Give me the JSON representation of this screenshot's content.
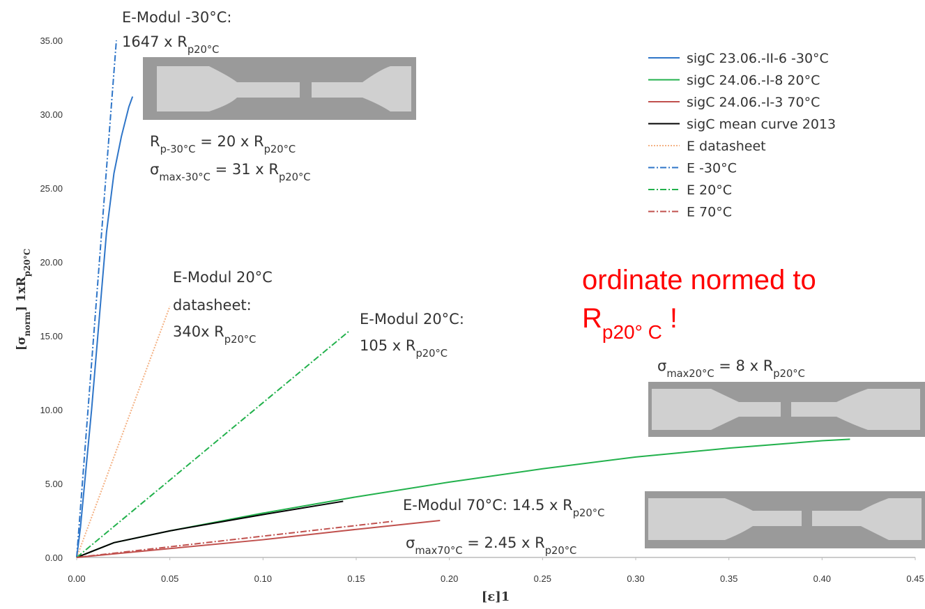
{
  "chart_data": {
    "type": "line",
    "xlabel": [
      {
        "text": "[ε]1"
      }
    ],
    "ylabel": [
      {
        "text": "[σ"
      },
      {
        "sub": "norm"
      },
      {
        "text": "] 1xR"
      },
      {
        "sub": "p20°C"
      }
    ],
    "xlim": [
      0,
      0.45
    ],
    "xticks": [
      {
        "value": 0,
        "label": "0.00"
      },
      {
        "value": 0.05,
        "label": "0.05"
      },
      {
        "value": 0.1,
        "label": "0.10"
      },
      {
        "value": 0.15,
        "label": "0.15"
      },
      {
        "value": 0.2,
        "label": "0.20"
      },
      {
        "value": 0.25,
        "label": "0.25"
      },
      {
        "value": 0.3,
        "label": "0.30"
      },
      {
        "value": 0.35,
        "label": "0.35"
      },
      {
        "value": 0.4,
        "label": "0.40"
      },
      {
        "value": 0.45,
        "label": "0.45"
      }
    ],
    "ylim": [
      0,
      35
    ],
    "yticks": [
      {
        "value": 0,
        "label": "0.00"
      },
      {
        "value": 5,
        "label": "5.00"
      },
      {
        "value": 10,
        "label": "10.00"
      },
      {
        "value": 15,
        "label": "15.00"
      },
      {
        "value": 20,
        "label": "20.00"
      },
      {
        "value": 25,
        "label": "25.00"
      },
      {
        "value": 30,
        "label": "30.00"
      },
      {
        "value": 35,
        "label": "35.00"
      }
    ],
    "grid": false,
    "legend": "upper right",
    "series": [
      {
        "name": "sigC 23.06.-II-6 -30°C",
        "color": "#2e75c8",
        "dash": "solid",
        "x": [
          0,
          0.002,
          0.005,
          0.008,
          0.012,
          0.016,
          0.02,
          0.024,
          0.028,
          0.03
        ],
        "values": [
          0,
          2,
          6,
          10,
          16,
          22,
          26,
          28.5,
          30.5,
          31.2
        ]
      },
      {
        "name": "sigC 24.06.-I-8 20°C",
        "color": "#22b14c",
        "dash": "solid",
        "x": [
          0,
          0.02,
          0.05,
          0.1,
          0.15,
          0.2,
          0.25,
          0.3,
          0.35,
          0.4,
          0.415
        ],
        "values": [
          0,
          1,
          1.8,
          3,
          4.1,
          5.1,
          6,
          6.8,
          7.4,
          7.9,
          8
        ]
      },
      {
        "name": "sigC 24.06.-I-3 70°C",
        "color": "#c0504d",
        "dash": "solid",
        "x": [
          0,
          0.05,
          0.1,
          0.15,
          0.195
        ],
        "values": [
          0,
          0.6,
          1.2,
          1.9,
          2.5
        ]
      },
      {
        "name": "sigC mean curve 2013",
        "color": "#000000",
        "dash": "solid",
        "x": [
          0,
          0.02,
          0.05,
          0.1,
          0.143
        ],
        "values": [
          0,
          1,
          1.8,
          2.9,
          3.8
        ]
      },
      {
        "name": "E datasheet",
        "color": "#f4b183",
        "dash": "dotted",
        "x": [
          0,
          0.05
        ],
        "values": [
          0,
          17
        ]
      },
      {
        "name": "E -30°C",
        "color": "#2e75c8",
        "dash": "dashdot",
        "x": [
          0,
          0.0213
        ],
        "values": [
          0,
          35
        ]
      },
      {
        "name": "E 20°C",
        "color": "#22b14c",
        "dash": "dashdot",
        "x": [
          0,
          0.146
        ],
        "values": [
          0,
          15.3
        ]
      },
      {
        "name": "E 70°C",
        "color": "#c0504d",
        "dash": "dashdot",
        "x": [
          0,
          0.17
        ],
        "values": [
          0,
          2.45
        ]
      }
    ],
    "annotations": [
      {
        "runs": [
          {
            "text": "E-Modul -30°C:"
          }
        ]
      },
      {
        "runs": [
          {
            "text": "1647 x R"
          },
          {
            "sub": "p20°C"
          }
        ]
      },
      {
        "runs": [
          {
            "text": "R"
          },
          {
            "sub": "p-30°C"
          },
          {
            "text": " = 20 x R"
          },
          {
            "sub": "p20°C"
          }
        ]
      },
      {
        "runs": [
          {
            "text": "σ"
          },
          {
            "sub": "max-30°C"
          },
          {
            "text": " = 31 x R"
          },
          {
            "sub": "p20°C"
          }
        ]
      },
      {
        "runs": [
          {
            "text": "E-Modul 20°C"
          }
        ]
      },
      {
        "runs": [
          {
            "text": "datasheet:"
          }
        ]
      },
      {
        "runs": [
          {
            "text": "340x R"
          },
          {
            "sub": "p20°C"
          }
        ]
      },
      {
        "runs": [
          {
            "text": "E-Modul 20°C:"
          }
        ]
      },
      {
        "runs": [
          {
            "text": "105 x R"
          },
          {
            "sub": "p20°C"
          }
        ]
      },
      {
        "color": "#ff0000",
        "runs": [
          {
            "text": "ordinate  normed to"
          }
        ]
      },
      {
        "color": "#ff0000",
        "runs": [
          {
            "text": "R"
          },
          {
            "sub": "p20°  C"
          },
          {
            "text": " !"
          }
        ]
      },
      {
        "runs": [
          {
            "text": "σ"
          },
          {
            "sub": "max20°C"
          },
          {
            "text": " = 8 x R"
          },
          {
            "sub": "p20°C"
          }
        ]
      },
      {
        "runs": [
          {
            "text": "E-Modul 70°C: 14.5 x R"
          },
          {
            "sub": "p20°C"
          }
        ]
      },
      {
        "runs": [
          {
            "text": "σ"
          },
          {
            "sub": "max70°C"
          },
          {
            "text": " = 2.45 x R"
          },
          {
            "sub": "p20°C"
          }
        ]
      }
    ]
  }
}
